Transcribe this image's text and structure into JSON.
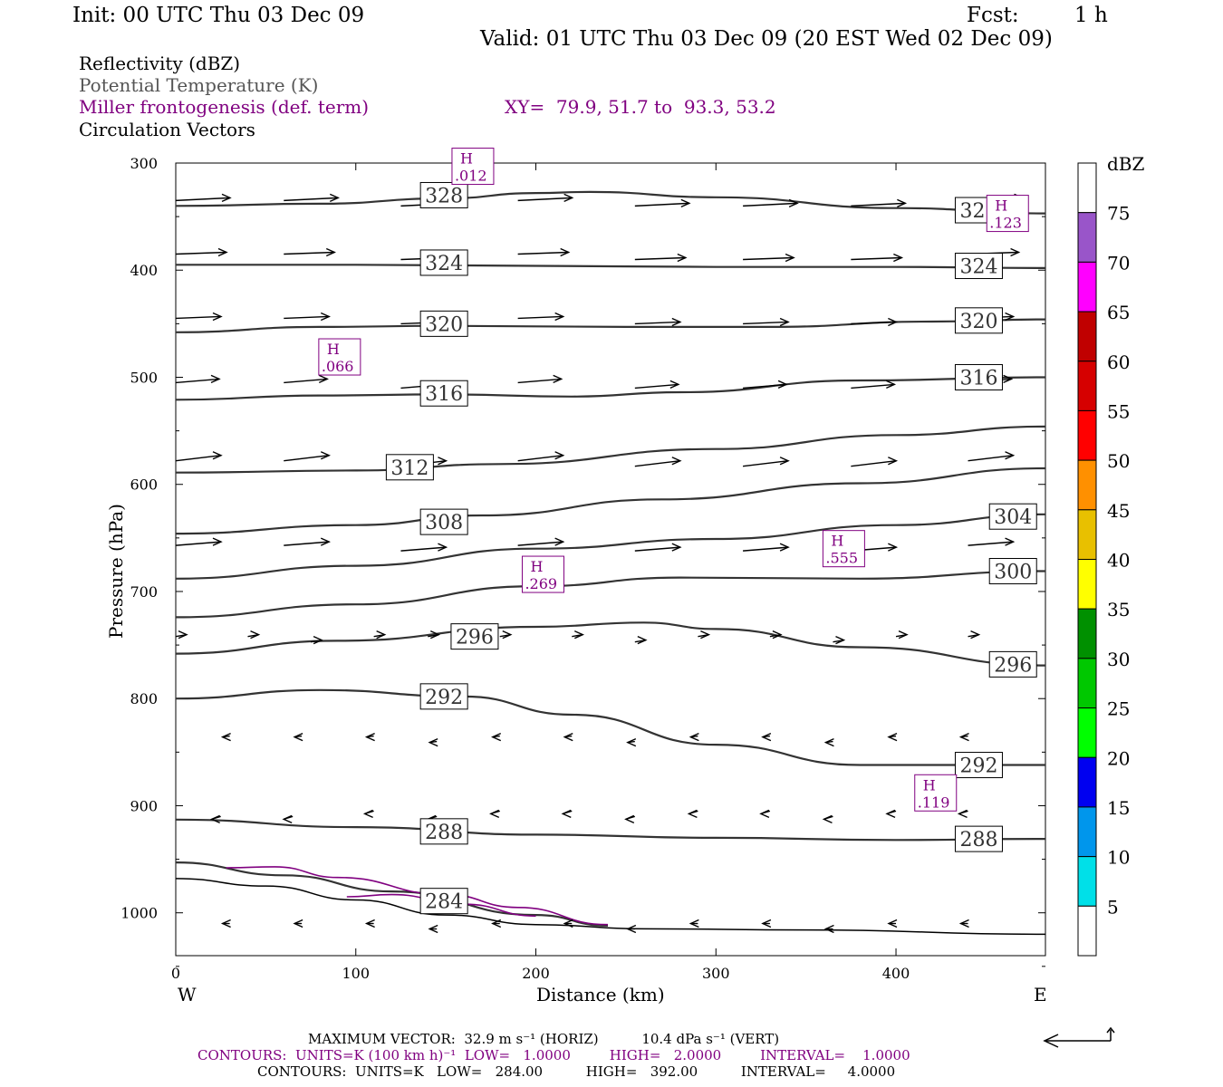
{
  "header": {
    "init": "Init: 00 UTC Thu 03 Dec 09",
    "fcst_label": "Fcst:",
    "fcst_value": "1 h",
    "valid": "Valid: 01 UTC Thu 03 Dec 09 (20 EST Wed 02 Dec 09)"
  },
  "fields": {
    "reflectivity": "Reflectivity (dBZ)",
    "theta": "Potential Temperature (K)",
    "miller": "Miller frontogenesis (def. term)",
    "xy": "XY=  79.9, 51.7 to  93.3, 53.2",
    "vectors": "Circulation Vectors"
  },
  "axes": {
    "ylabel": "Pressure (hPa)",
    "xlabel": "Distance (km)",
    "west": "W",
    "east": "E"
  },
  "colorbar": {
    "unit": "dBZ",
    "levels": [
      "5",
      "10",
      "15",
      "20",
      "25",
      "30",
      "35",
      "40",
      "45",
      "50",
      "55",
      "60",
      "65",
      "70",
      "75"
    ],
    "colors": [
      "#ffffff",
      "#00e0e8",
      "#0096ec",
      "#0000f0",
      "#00ff00",
      "#00c800",
      "#009000",
      "#ffff00",
      "#e8c000",
      "#ff9000",
      "#ff0000",
      "#d60000",
      "#c00000",
      "#ff00ff",
      "#9955c9"
    ]
  },
  "footer": {
    "max_vector": "MAXIMUM VECTOR:  32.9 m s⁻¹ (HORIZ)          10.4 dPa s⁻¹ (VERT)",
    "contours_purple": "CONTOURS:  UNITS=K (100 km h)⁻¹  LOW=   1.0000         HIGH=   2.0000         INTERVAL=    1.0000",
    "contours_black": "CONTOURS:  UNITS=K   LOW=   284.00          HIGH=   392.00          INTERVAL=     4.0000"
  },
  "chart_data": {
    "type": "line",
    "xlim": [
      0,
      483
    ],
    "ylim": [
      1040,
      300
    ],
    "x_ticks": [
      0,
      100,
      200,
      300,
      400
    ],
    "y_ticks": [
      300,
      400,
      500,
      600,
      700,
      800,
      900,
      1000
    ],
    "isentropes": [
      {
        "label": "328",
        "label_positions": [
          [
            149,
            330
          ],
          [
            446,
            344
          ]
        ],
        "points": [
          [
            0,
            340
          ],
          [
            80,
            338
          ],
          [
            150,
            333
          ],
          [
            200,
            328
          ],
          [
            230,
            327
          ],
          [
            300,
            332
          ],
          [
            400,
            342
          ],
          [
            483,
            347
          ]
        ]
      },
      {
        "label": "324",
        "label_positions": [
          [
            149,
            393
          ],
          [
            446,
            396
          ]
        ],
        "points": [
          [
            0,
            395
          ],
          [
            100,
            395
          ],
          [
            200,
            396
          ],
          [
            300,
            397
          ],
          [
            400,
            397
          ],
          [
            483,
            398
          ]
        ]
      },
      {
        "label": "320",
        "label_positions": [
          [
            149,
            450
          ],
          [
            446,
            447
          ]
        ],
        "points": [
          [
            0,
            458
          ],
          [
            80,
            453
          ],
          [
            150,
            452
          ],
          [
            250,
            453
          ],
          [
            330,
            453
          ],
          [
            420,
            448
          ],
          [
            483,
            446
          ]
        ]
      },
      {
        "label": "316",
        "label_positions": [
          [
            149,
            515
          ],
          [
            446,
            500
          ]
        ],
        "points": [
          [
            0,
            521
          ],
          [
            80,
            517
          ],
          [
            150,
            516
          ],
          [
            220,
            518
          ],
          [
            280,
            514
          ],
          [
            380,
            503
          ],
          [
            483,
            500
          ]
        ]
      },
      {
        "label": "312",
        "label_positions": [
          [
            130,
            584
          ]
        ],
        "points": [
          [
            0,
            589
          ],
          [
            100,
            587
          ],
          [
            180,
            581
          ],
          [
            300,
            567
          ],
          [
            400,
            554
          ],
          [
            483,
            546
          ]
        ]
      },
      {
        "label": "308",
        "label_positions": [
          [
            149,
            635
          ]
        ],
        "points": [
          [
            0,
            646
          ],
          [
            100,
            638
          ],
          [
            170,
            629
          ],
          [
            270,
            614
          ],
          [
            380,
            599
          ],
          [
            483,
            585
          ]
        ]
      },
      {
        "label": "304",
        "label_positions": [
          [
            465,
            630
          ]
        ],
        "points": [
          [
            0,
            688
          ],
          [
            100,
            676
          ],
          [
            200,
            660
          ],
          [
            300,
            651
          ],
          [
            400,
            638
          ],
          [
            483,
            628
          ]
        ]
      },
      {
        "label": "300",
        "label_positions": [
          [
            465,
            681
          ]
        ],
        "points": [
          [
            0,
            724
          ],
          [
            100,
            712
          ],
          [
            200,
            695
          ],
          [
            280,
            687
          ],
          [
            380,
            688
          ],
          [
            483,
            681
          ]
        ]
      },
      {
        "label": "296",
        "label_positions": [
          [
            166,
            742
          ],
          [
            465,
            768
          ]
        ],
        "points": [
          [
            0,
            758
          ],
          [
            90,
            746
          ],
          [
            200,
            733
          ],
          [
            260,
            729
          ],
          [
            300,
            735
          ],
          [
            380,
            752
          ],
          [
            483,
            769
          ]
        ]
      },
      {
        "label": "292",
        "label_positions": [
          [
            149,
            798
          ],
          [
            446,
            862
          ]
        ],
        "points": [
          [
            0,
            800
          ],
          [
            80,
            792
          ],
          [
            160,
            798
          ],
          [
            220,
            815
          ],
          [
            300,
            843
          ],
          [
            380,
            862
          ],
          [
            483,
            862
          ]
        ]
      },
      {
        "label": "288",
        "label_positions": [
          [
            149,
            924
          ],
          [
            446,
            931
          ]
        ],
        "points": [
          [
            0,
            913
          ],
          [
            100,
            920
          ],
          [
            200,
            927
          ],
          [
            300,
            930
          ],
          [
            400,
            932
          ],
          [
            483,
            931
          ]
        ]
      },
      {
        "label": "284",
        "label_positions": [
          [
            149,
            989
          ]
        ],
        "points": [
          [
            0,
            953
          ],
          [
            60,
            965
          ],
          [
            120,
            980
          ],
          [
            200,
            1002
          ],
          [
            240,
            1012
          ]
        ]
      }
    ],
    "terrain": [
      [
        0,
        968
      ],
      [
        50,
        975
      ],
      [
        100,
        988
      ],
      [
        150,
        1002
      ],
      [
        200,
        1011
      ],
      [
        260,
        1015
      ],
      [
        350,
        1016
      ],
      [
        483,
        1020
      ]
    ],
    "frontogenesis_maxima": [
      {
        "label": "H",
        "value": ".012",
        "at": [
          165,
          303
        ]
      },
      {
        "label": "H",
        "value": ".123",
        "at": [
          462,
          347
        ]
      },
      {
        "label": "H",
        "value": ".066",
        "at": [
          91,
          481
        ]
      },
      {
        "label": "H",
        "value": ".555",
        "at": [
          371,
          660
        ]
      },
      {
        "label": "H",
        "value": ".269",
        "at": [
          204,
          684
        ]
      },
      {
        "label": "H",
        "value": ".119",
        "at": [
          422,
          888
        ]
      }
    ]
  }
}
